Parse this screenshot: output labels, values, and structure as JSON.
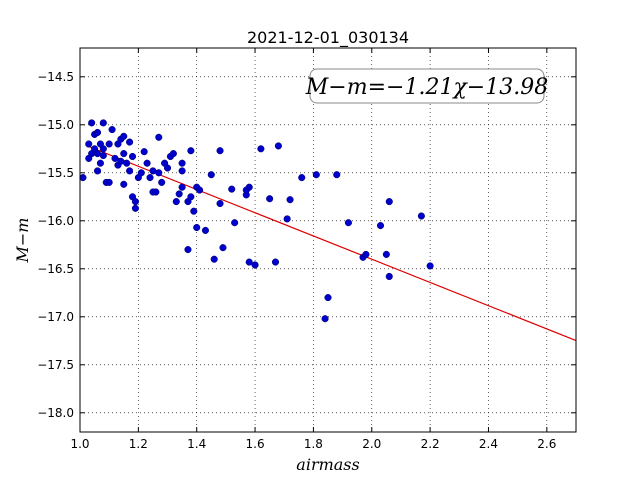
{
  "chart_data": {
    "type": "scatter",
    "title": "2021-12-01_030134",
    "xlabel": "airmass",
    "ylabel": "M−m",
    "xlim": [
      1.0,
      2.7
    ],
    "ylim": [
      -18.2,
      -14.2
    ],
    "y_inverted": true,
    "xticks": [
      1.0,
      1.2,
      1.4,
      1.6,
      1.8,
      2.0,
      2.2,
      2.4,
      2.6
    ],
    "yticks": [
      -14.5,
      -15.0,
      -15.5,
      -16.0,
      -16.5,
      -17.0,
      -17.5,
      -18.0
    ],
    "grid": true,
    "point_color": "#0000cc",
    "fit_color": "#dd0000",
    "annotation": "M−m=−1.21χ−13.98",
    "fit": {
      "slope": -1.21,
      "intercept": -13.98,
      "x_range": [
        1.02,
        2.7
      ]
    },
    "points": [
      [
        1.01,
        -15.55
      ],
      [
        1.03,
        -15.35
      ],
      [
        1.03,
        -15.2
      ],
      [
        1.04,
        -14.98
      ],
      [
        1.04,
        -15.3
      ],
      [
        1.05,
        -15.1
      ],
      [
        1.05,
        -15.25
      ],
      [
        1.06,
        -15.08
      ],
      [
        1.06,
        -15.3
      ],
      [
        1.06,
        -15.48
      ],
      [
        1.07,
        -15.4
      ],
      [
        1.07,
        -15.2
      ],
      [
        1.08,
        -14.98
      ],
      [
        1.08,
        -15.25
      ],
      [
        1.08,
        -15.32
      ],
      [
        1.09,
        -15.6
      ],
      [
        1.1,
        -15.6
      ],
      [
        1.1,
        -15.2
      ],
      [
        1.11,
        -15.05
      ],
      [
        1.12,
        -15.35
      ],
      [
        1.13,
        -15.2
      ],
      [
        1.13,
        -15.42
      ],
      [
        1.14,
        -15.15
      ],
      [
        1.14,
        -15.38
      ],
      [
        1.15,
        -15.12
      ],
      [
        1.15,
        -15.3
      ],
      [
        1.15,
        -15.62
      ],
      [
        1.16,
        -15.4
      ],
      [
        1.17,
        -15.18
      ],
      [
        1.17,
        -15.48
      ],
      [
        1.18,
        -15.33
      ],
      [
        1.18,
        -15.75
      ],
      [
        1.19,
        -15.8
      ],
      [
        1.19,
        -15.87
      ],
      [
        1.2,
        -15.55
      ],
      [
        1.21,
        -15.5
      ],
      [
        1.22,
        -15.28
      ],
      [
        1.23,
        -15.4
      ],
      [
        1.24,
        -15.55
      ],
      [
        1.25,
        -15.7
      ],
      [
        1.25,
        -15.48
      ],
      [
        1.26,
        -15.7
      ],
      [
        1.27,
        -15.5
      ],
      [
        1.27,
        -15.13
      ],
      [
        1.28,
        -15.6
      ],
      [
        1.29,
        -15.4
      ],
      [
        1.3,
        -15.45
      ],
      [
        1.31,
        -15.33
      ],
      [
        1.32,
        -15.3
      ],
      [
        1.33,
        -15.8
      ],
      [
        1.34,
        -15.72
      ],
      [
        1.35,
        -15.65
      ],
      [
        1.35,
        -15.48
      ],
      [
        1.35,
        -15.4
      ],
      [
        1.37,
        -16.3
      ],
      [
        1.37,
        -15.8
      ],
      [
        1.38,
        -15.75
      ],
      [
        1.38,
        -15.27
      ],
      [
        1.39,
        -15.9
      ],
      [
        1.4,
        -15.65
      ],
      [
        1.4,
        -16.07
      ],
      [
        1.41,
        -15.68
      ],
      [
        1.43,
        -16.1
      ],
      [
        1.45,
        -15.52
      ],
      [
        1.46,
        -16.4
      ],
      [
        1.48,
        -15.27
      ],
      [
        1.48,
        -15.82
      ],
      [
        1.49,
        -16.28
      ],
      [
        1.52,
        -15.67
      ],
      [
        1.53,
        -16.02
      ],
      [
        1.57,
        -15.73
      ],
      [
        1.57,
        -15.68
      ],
      [
        1.58,
        -15.65
      ],
      [
        1.58,
        -16.43
      ],
      [
        1.6,
        -16.46
      ],
      [
        1.62,
        -15.25
      ],
      [
        1.65,
        -15.77
      ],
      [
        1.67,
        -16.43
      ],
      [
        1.68,
        -15.22
      ],
      [
        1.71,
        -15.98
      ],
      [
        1.72,
        -15.78
      ],
      [
        1.76,
        -15.55
      ],
      [
        1.81,
        -15.52
      ],
      [
        1.84,
        -17.02
      ],
      [
        1.85,
        -16.8
      ],
      [
        1.88,
        -15.52
      ],
      [
        1.92,
        -16.02
      ],
      [
        1.97,
        -16.38
      ],
      [
        1.98,
        -16.35
      ],
      [
        2.03,
        -16.05
      ],
      [
        2.05,
        -16.35
      ],
      [
        2.06,
        -15.8
      ],
      [
        2.06,
        -16.58
      ],
      [
        2.17,
        -15.95
      ],
      [
        2.2,
        -16.47
      ]
    ]
  }
}
